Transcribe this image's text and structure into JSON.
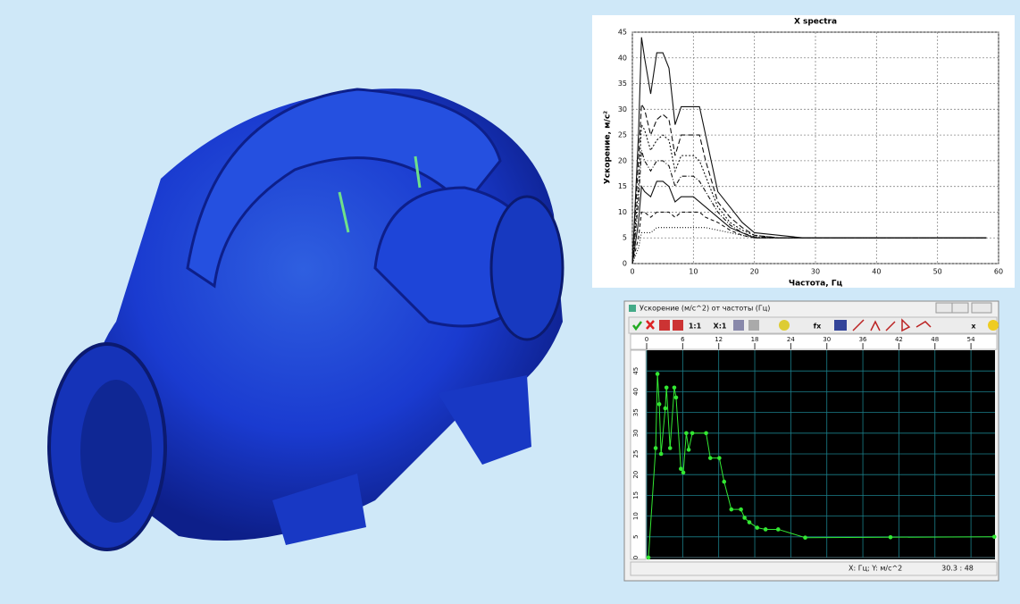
{
  "chart_data": [
    {
      "type": "line",
      "title": "X spectra",
      "x_label": "Частота, Гц",
      "y_label": "Ускорение, м/с²",
      "x": [
        0,
        1,
        1.5,
        2,
        3,
        4,
        5,
        6,
        7,
        8,
        10,
        11,
        12,
        14,
        16,
        18,
        20,
        24,
        28,
        40,
        58
      ],
      "series": [
        {
          "color": "#111111",
          "dash": "none",
          "values": [
            0,
            25,
            44,
            40,
            33,
            41,
            41,
            38,
            27,
            30.5,
            30.5,
            30.5,
            25,
            14,
            11,
            8,
            6,
            5.5,
            5,
            5,
            5
          ]
        },
        {
          "color": "#111111",
          "dash": "6 3",
          "values": [
            0,
            20,
            31,
            30,
            25,
            28,
            29,
            28,
            21,
            25,
            25,
            25,
            20,
            12,
            9,
            7,
            5.5,
            5,
            5,
            5,
            5
          ]
        },
        {
          "color": "#111111",
          "dash": "2 2",
          "values": [
            0,
            15,
            27,
            26,
            22,
            24,
            25,
            24,
            18,
            21,
            21,
            20,
            17,
            11,
            8,
            6.5,
            5.5,
            5,
            5,
            5,
            5
          ]
        },
        {
          "color": "#111111",
          "dash": "5 2 1 2",
          "values": [
            0,
            12,
            22,
            20,
            18,
            20,
            20,
            19,
            15,
            17,
            17,
            16,
            14,
            10,
            7.5,
            6,
            5.2,
            5,
            5,
            5,
            5
          ]
        },
        {
          "color": "#111111",
          "dash": "none",
          "values": [
            0,
            8,
            15,
            14,
            13,
            16,
            16,
            15,
            12,
            13,
            13,
            12,
            11,
            9,
            7,
            6,
            5,
            5,
            5,
            5,
            5
          ]
        },
        {
          "color": "#111111",
          "dash": "4 3",
          "values": [
            0,
            5,
            10,
            10,
            9,
            10,
            10,
            10,
            9,
            10,
            10,
            10,
            9,
            8,
            6.5,
            5.5,
            5,
            5,
            5,
            5,
            5
          ]
        },
        {
          "color": "#111111",
          "dash": "1 2",
          "values": [
            0,
            3,
            6,
            6,
            6,
            7,
            7,
            7,
            7,
            7,
            7,
            7,
            7,
            6.5,
            6,
            5.5,
            5,
            5,
            5,
            5,
            5
          ]
        }
      ],
      "xlim": [
        0,
        60
      ],
      "xticks": [
        0,
        10,
        20,
        30,
        40,
        50,
        60
      ],
      "ylim": [
        0,
        45
      ],
      "yticks": [
        0,
        5,
        10,
        15,
        20,
        25,
        30,
        35,
        40,
        45
      ],
      "grid": true
    },
    {
      "type": "line",
      "title": "Ускорение (м/с^2) от частоты (Гц)",
      "x": [
        0.3,
        1.5,
        1.8,
        2.1,
        2.4,
        3.1,
        3.3,
        3.9,
        4.6,
        4.9,
        5.7,
        6.1,
        6.6,
        7.0,
        7.6,
        9.9,
        10.6,
        12.1,
        12.9,
        14.1,
        15.7,
        16.3,
        17.1,
        18.4,
        19.8,
        21.9,
        26.4,
        40.6,
        57.9
      ],
      "series": [
        {
          "color": "#33e833",
          "markers": true,
          "values": [
            0,
            26.4,
            44.3,
            37,
            25,
            36,
            41,
            26.4,
            41,
            38.6,
            21.4,
            20.5,
            30,
            26,
            30,
            30,
            24,
            24,
            18.3,
            11.6,
            11.6,
            9.6,
            8.5,
            7.2,
            6.8,
            6.8,
            4.8,
            4.9,
            5
          ]
        }
      ],
      "xlim": [
        0,
        58
      ],
      "xticks": [
        0,
        6,
        12,
        18,
        24,
        30,
        36,
        42,
        48,
        54
      ],
      "ylim": [
        0,
        50
      ],
      "yticks": [
        0,
        5,
        10,
        15,
        20,
        25,
        30,
        35,
        40,
        45
      ],
      "grid": true
    }
  ],
  "toolbar": [
    "1:1",
    "X:1",
    "fx",
    "x"
  ],
  "status_bar": {
    "units": "X: Гц;  Y: м/с^2",
    "cursor": "30.3 : 48"
  }
}
